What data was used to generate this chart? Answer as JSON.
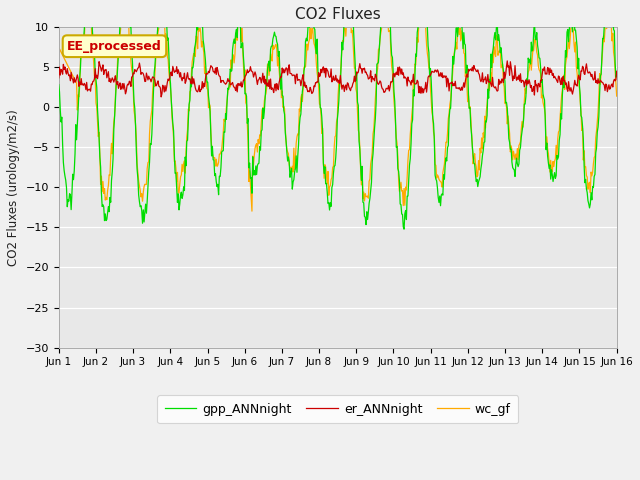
{
  "title": "CO2 Fluxes",
  "ylabel": "CO2 Fluxes (urology/m2/s)",
  "ylim": [
    -30,
    10
  ],
  "yticks": [
    -30,
    -25,
    -20,
    -15,
    -10,
    -5,
    0,
    5,
    10
  ],
  "annotation_text": "EE_processed",
  "annotation_color": "#cc0000",
  "annotation_bg": "#ffffcc",
  "annotation_border": "#ccaa00",
  "fig_bg": "#f0f0f0",
  "plot_bg": "#e8e8e8",
  "grid_color": "#ffffff",
  "line_colors": {
    "gpp": "#00dd00",
    "er": "#cc0000",
    "wc": "#ffaa00"
  },
  "legend_labels": [
    "gpp_ANNnight",
    "er_ANNnight",
    "wc_gf"
  ],
  "n_days": 15,
  "points_per_day": 48,
  "xtick_labels": [
    "Jun 1",
    "Jun 2",
    "Jun 3",
    "Jun 4",
    "Jun 5",
    "Jun 6",
    "Jun 7",
    "Jun 8",
    "Jun 9",
    "Jun 10",
    "Jun 11",
    "Jun 12",
    "Jun 13",
    "Jun 14",
    "Jun 15",
    "Jun 16"
  ]
}
